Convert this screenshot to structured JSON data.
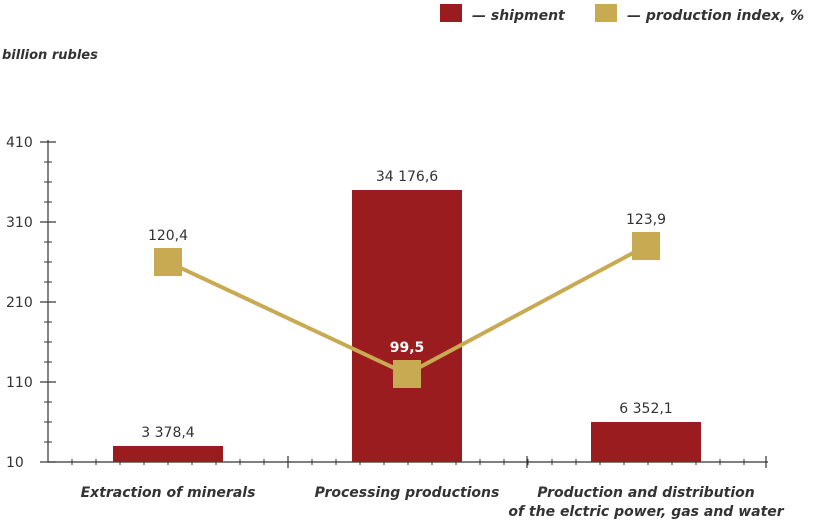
{
  "colors": {
    "bar": "#9b1c1f",
    "line": "#c8aa52",
    "axis": "#333333",
    "text": "#333333"
  },
  "chart_data": {
    "type": "bar",
    "ylabel": "billion rubles",
    "xlabel": "",
    "title": "",
    "ylim": [
      10,
      410
    ],
    "yticks": [
      "410",
      "310",
      "210",
      "110",
      "10"
    ],
    "ytick_values": [
      410,
      310,
      210,
      110,
      10
    ],
    "grid": false,
    "legend_position": "top-right",
    "categories": [
      {
        "label": "Extraction of minerals",
        "lines": [
          "Extraction of minerals"
        ]
      },
      {
        "label": "Processing productions",
        "lines": [
          "Processing productions"
        ]
      },
      {
        "label": "Production and distribution of the elctric power, gas and water",
        "lines": [
          "Production and distribution",
          "of the elctric power, gas and water"
        ]
      }
    ],
    "series": [
      {
        "name": "— shipment",
        "type": "bar",
        "values": [
          3378.4,
          34176.6,
          6352.1
        ],
        "labels": [
          "3 378,4",
          "34 176,6",
          "6 352,1"
        ],
        "plotted_on_axis": [
          30,
          350,
          60
        ]
      },
      {
        "name": "— production index, %",
        "type": "line",
        "values": [
          120.4,
          99.5,
          123.9
        ],
        "labels": [
          "120,4",
          "99,5",
          "123,9"
        ],
        "plotted_on_axis": [
          260,
          120,
          280
        ]
      }
    ]
  }
}
